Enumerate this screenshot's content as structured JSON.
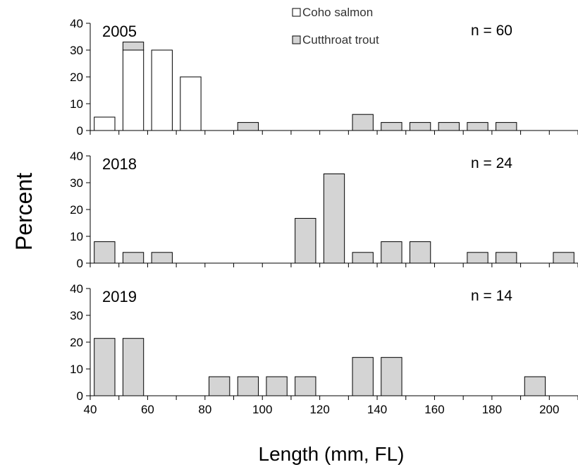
{
  "chart_data": {
    "type": "bar",
    "xlabel": "Length (mm,  FL)",
    "ylabel": "Percent",
    "xlim": [
      40,
      210
    ],
    "ylim": [
      0,
      40
    ],
    "x_ticks": [
      40,
      60,
      80,
      100,
      120,
      140,
      160,
      180,
      200
    ],
    "y_ticks": [
      0,
      10,
      20,
      30,
      40
    ],
    "legend": {
      "placement": "top-center",
      "entries": [
        {
          "name": "Coho salmon",
          "color": "#ffffff"
        },
        {
          "name": "Cutthroat trout",
          "color": "#d4d4d4"
        }
      ]
    },
    "panels": [
      {
        "year": "2005",
        "n_label": "n = 60",
        "bins": [
          {
            "x": 45,
            "coho": 5,
            "cutthroat": 0
          },
          {
            "x": 55,
            "coho": 30,
            "cutthroat": 3
          },
          {
            "x": 65,
            "coho": 30,
            "cutthroat": 0
          },
          {
            "x": 75,
            "coho": 20,
            "cutthroat": 0
          },
          {
            "x": 95,
            "coho": 0,
            "cutthroat": 3
          },
          {
            "x": 135,
            "coho": 0,
            "cutthroat": 6
          },
          {
            "x": 145,
            "coho": 0,
            "cutthroat": 3
          },
          {
            "x": 155,
            "coho": 0,
            "cutthroat": 3
          },
          {
            "x": 165,
            "coho": 0,
            "cutthroat": 3
          },
          {
            "x": 175,
            "coho": 0,
            "cutthroat": 3
          },
          {
            "x": 185,
            "coho": 0,
            "cutthroat": 3
          }
        ]
      },
      {
        "year": "2018",
        "n_label": "n = 24",
        "bins": [
          {
            "x": 45,
            "coho": 0,
            "cutthroat": 8
          },
          {
            "x": 55,
            "coho": 0,
            "cutthroat": 4
          },
          {
            "x": 65,
            "coho": 0,
            "cutthroat": 4
          },
          {
            "x": 115,
            "coho": 0,
            "cutthroat": 16.7
          },
          {
            "x": 125,
            "coho": 0,
            "cutthroat": 33.3
          },
          {
            "x": 135,
            "coho": 0,
            "cutthroat": 4
          },
          {
            "x": 145,
            "coho": 0,
            "cutthroat": 8
          },
          {
            "x": 155,
            "coho": 0,
            "cutthroat": 8
          },
          {
            "x": 175,
            "coho": 0,
            "cutthroat": 4
          },
          {
            "x": 185,
            "coho": 0,
            "cutthroat": 4
          },
          {
            "x": 205,
            "coho": 0,
            "cutthroat": 4
          }
        ]
      },
      {
        "year": "2019",
        "n_label": "n = 14",
        "bins": [
          {
            "x": 45,
            "coho": 0,
            "cutthroat": 21.4
          },
          {
            "x": 55,
            "coho": 0,
            "cutthroat": 21.4
          },
          {
            "x": 85,
            "coho": 0,
            "cutthroat": 7.1
          },
          {
            "x": 95,
            "coho": 0,
            "cutthroat": 7.1
          },
          {
            "x": 105,
            "coho": 0,
            "cutthroat": 7.1
          },
          {
            "x": 115,
            "coho": 0,
            "cutthroat": 7.1
          },
          {
            "x": 135,
            "coho": 0,
            "cutthroat": 14.3
          },
          {
            "x": 145,
            "coho": 0,
            "cutthroat": 14.3
          },
          {
            "x": 195,
            "coho": 0,
            "cutthroat": 7.1
          }
        ]
      }
    ]
  }
}
